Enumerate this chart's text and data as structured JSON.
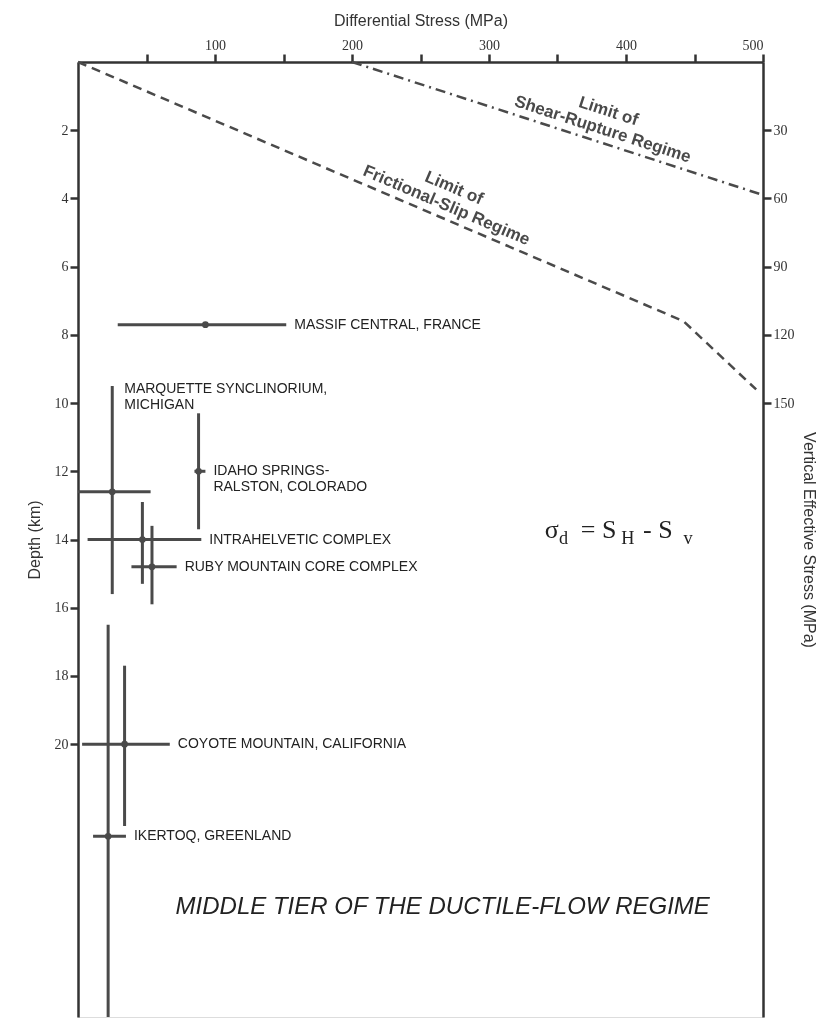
{
  "chart_data": {
    "type": "scatter",
    "xlabel": "Differential Stress (MPa)",
    "ylabel": "Depth (km)",
    "y2label": "Vertical Effective Stress (MPa)",
    "xlim": [
      0,
      500
    ],
    "xticks": [
      {
        "value": 50,
        "label": null
      },
      100,
      {
        "value": 150,
        "label": null
      },
      200,
      {
        "value": 250,
        "label": null
      },
      300,
      {
        "value": 350,
        "label": null
      },
      400,
      {
        "value": 450,
        "label": null
      },
      500
    ],
    "ylim": [
      28,
      0
    ],
    "yticks": [
      2,
      4,
      6,
      8,
      10,
      12,
      14,
      16,
      18,
      20
    ],
    "y2lim": [
      420,
      0
    ],
    "y2ticks": [
      30,
      60,
      90,
      120,
      150
    ],
    "marker": "circle",
    "grid": false,
    "series": [
      {
        "color": "#4a4a4a",
        "x": [
          93
        ],
        "values": [
          7.7
        ],
        "xerrors": [
          [
            29,
            152
          ]
        ]
      },
      {
        "color": "#4a4a4a",
        "x": [
          25
        ],
        "values": [
          12.6
        ],
        "xerrors": [
          [
            0,
            53
          ]
        ],
        "errors": [
          [
            9.5,
            15.6
          ]
        ]
      },
      {
        "color": "#4a4a4a",
        "x": [
          88
        ],
        "values": [
          12
        ],
        "xerrors": [
          [
            85,
            93
          ]
        ],
        "errors": [
          [
            10.3,
            13.7
          ]
        ]
      },
      {
        "color": "#4a4a4a",
        "x": [
          47
        ],
        "values": [
          14
        ],
        "xerrors": [
          [
            7,
            90
          ]
        ],
        "errors": [
          [
            12.9,
            15.3
          ]
        ]
      },
      {
        "color": "#4a4a4a",
        "x": [
          54
        ],
        "values": [
          14.8
        ],
        "xerrors": [
          [
            39,
            72
          ]
        ],
        "errors": [
          [
            13.6,
            15.9
          ]
        ]
      },
      {
        "color": "#4a4a4a",
        "x": [
          34
        ],
        "values": [
          20
        ],
        "xerrors": [
          [
            3,
            67
          ]
        ],
        "errors": [
          [
            17.7,
            22.4
          ]
        ]
      },
      {
        "color": "#4a4a4a",
        "x": [
          22
        ],
        "values": [
          22.7
        ],
        "xerrors": [
          [
            11,
            35
          ]
        ],
        "errors": [
          [
            16.5,
            28
          ]
        ]
      },
      {
        "name": "Limit of\nShear-Rupture Regime",
        "type": "line",
        "marker": "none",
        "line_style": "dashdot",
        "color": "#4a4a4a",
        "x": [
          200,
          500
        ],
        "values": [
          0,
          3.9
        ]
      },
      {
        "name": "Limit of\nFrictional-Slip Regime",
        "type": "line",
        "marker": "none",
        "line_style": "dashed",
        "color": "#4a4a4a",
        "x": [
          0,
          442,
          495
        ],
        "values": [
          0,
          7.6,
          9.6
        ]
      }
    ],
    "annotations": [
      {
        "text": "MASSIF CENTRAL, FRANCE",
        "x": 152,
        "y": 7.7
      },
      {
        "text": "MARQUETTE SYNCLINORIUM,\nMICHIGAN",
        "x": 25,
        "y": 9.5
      },
      {
        "text": "IDAHO SPRINGS-\nRALSTON, COLORADO",
        "x": 93,
        "y": 12
      },
      {
        "text": "INTRAHELVETIC COMPLEX",
        "x": 90,
        "y": 14
      },
      {
        "text": "RUBY MOUNTAIN CORE COMPLEX",
        "x": 72,
        "y": 14.8
      },
      {
        "text": "COYOTE MOUNTAIN, CALIFORNIA",
        "x": 67,
        "y": 20
      },
      {
        "text": "IKERTOQ, GREENLAND",
        "x": 35,
        "y": 22.7
      },
      "σ$_{d}$ = S$_{H}$ - S$_{v}$",
      "MIDDLE TIER OF THE DUCTILE-FLOW REGIME"
    ]
  }
}
